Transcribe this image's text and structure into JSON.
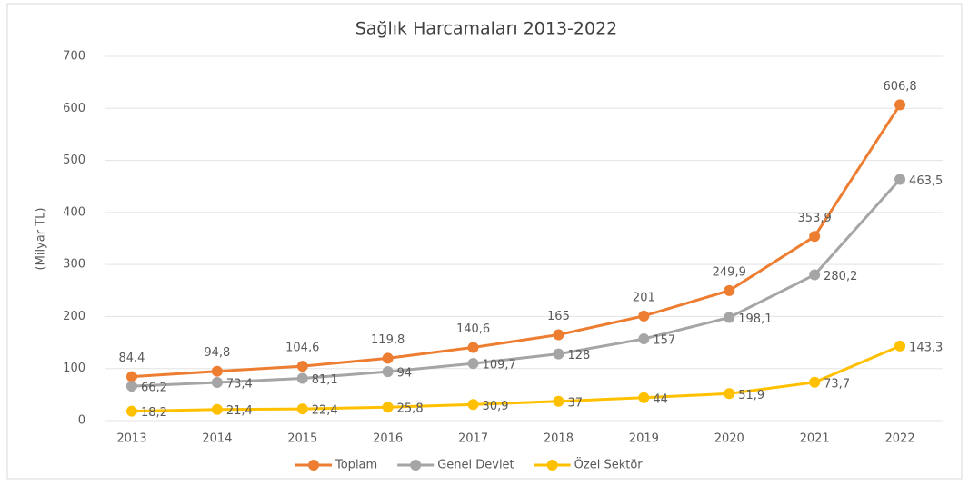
{
  "chart_data": {
    "type": "line",
    "title": "Sağlık Harcamaları 2013-2022",
    "y_label": "(Milyar TL)",
    "categories": [
      "2013",
      "2014",
      "2015",
      "2016",
      "2017",
      "2018",
      "2019",
      "2020",
      "2021",
      "2022"
    ],
    "ylim": [
      0,
      700
    ],
    "yticks": [
      0,
      100,
      200,
      300,
      400,
      500,
      600,
      700
    ],
    "grid": true,
    "legend": "bottom",
    "series": [
      {
        "name": "Toplam",
        "color": "#ed7d31",
        "values": [
          84.4,
          94.8,
          104.6,
          119.8,
          140.6,
          165,
          201,
          249.9,
          353.9,
          606.8
        ],
        "value_labels": [
          "84,4",
          "94,8",
          "104,6",
          "119,8",
          "140,6",
          "165",
          "201",
          "249,9",
          "353,9",
          "606,8"
        ]
      },
      {
        "name": "Genel Devlet",
        "color": "#a5a5a5",
        "values": [
          66.2,
          73.4,
          81.1,
          94,
          109.7,
          128,
          157,
          198.1,
          280.2,
          463.5
        ],
        "value_labels": [
          "66,2",
          "73,4",
          "81,1",
          "94",
          "109,7",
          "128",
          "157",
          "198,1",
          "280,2",
          "463,5"
        ]
      },
      {
        "name": "Özel Sektör",
        "color": "#ffc000",
        "values": [
          18.2,
          21.4,
          22.4,
          25.8,
          30.9,
          37,
          44,
          51.9,
          73.7,
          143.3
        ],
        "value_labels": [
          "18,2",
          "21,4",
          "22,4",
          "25,8",
          "30,9",
          "37",
          "44",
          "51,9",
          "73,7",
          "143,3"
        ]
      }
    ]
  }
}
